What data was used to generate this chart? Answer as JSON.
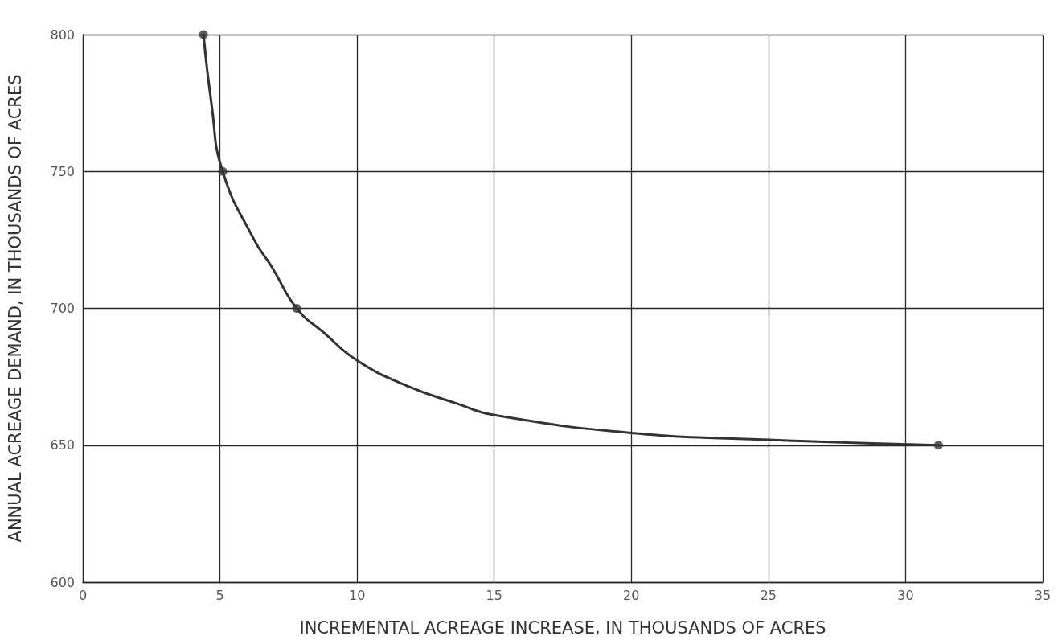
{
  "chart_data": {
    "type": "line",
    "xlabel": "INCREMENTAL ACREAGE INCREASE, IN THOUSANDS OF ACRES",
    "ylabel": "ANNUAL ACREAGE DEMAND, IN THOUSANDS OF ACRES",
    "xlim": [
      0,
      35
    ],
    "xticks": [
      0,
      5,
      10,
      15,
      20,
      25,
      30,
      35
    ],
    "ylim": [
      600,
      800
    ],
    "yticks": [
      600,
      650,
      700,
      750,
      800
    ],
    "grid": true,
    "series": [
      {
        "color": "#333333",
        "marker": "none",
        "line_style": "solid",
        "x": [
          4.4,
          4.7,
          5.1,
          6.25,
          6.9,
          7.8,
          8.8,
          10,
          11.75,
          13.7,
          15,
          20,
          25,
          31.2
        ],
        "values": [
          800,
          774,
          750,
          725,
          715,
          700,
          691,
          681,
          672,
          665,
          661,
          654.5,
          652,
          650
        ]
      },
      {
        "type": "scatter",
        "color": "#333333",
        "marker": "circle",
        "x": [
          4.4,
          5.1,
          7.8,
          31.2
        ],
        "values": [
          800,
          750,
          700,
          650
        ]
      }
    ]
  }
}
